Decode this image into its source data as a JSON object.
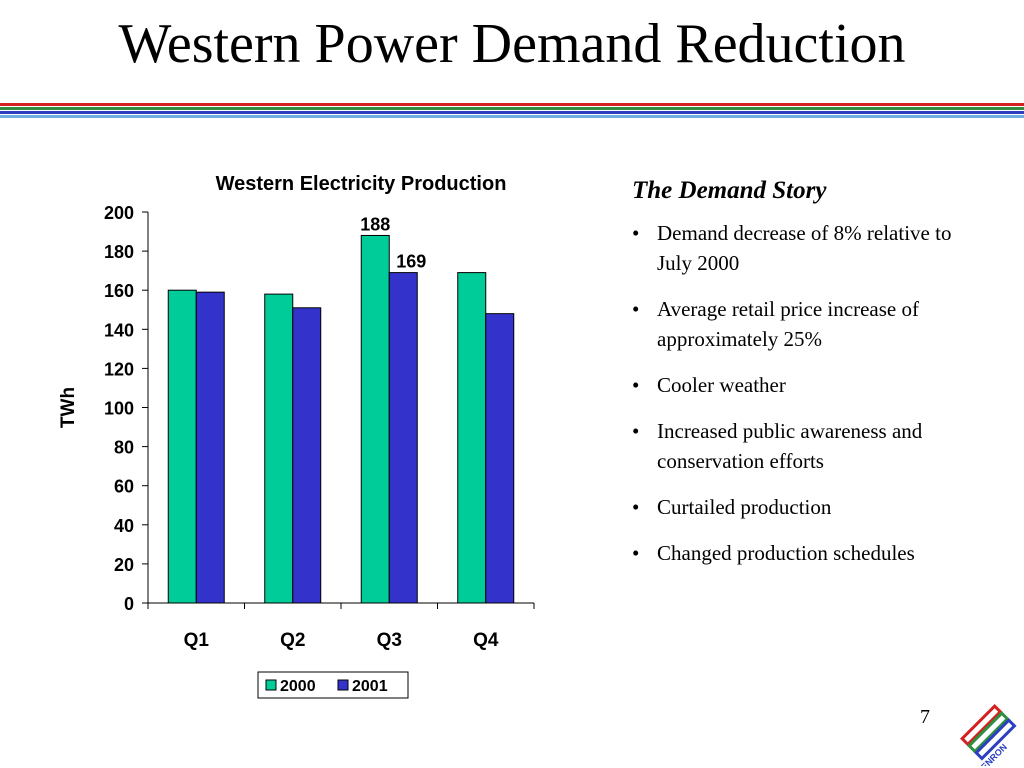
{
  "slide": {
    "title": "Western Power Demand Reduction",
    "page_number": "7",
    "rule_colors": [
      "#d42020",
      "#2f8f3f",
      "#2b3fbf",
      "#6fb0e0"
    ]
  },
  "chart_data": {
    "type": "bar",
    "title": "Western Electricity Production",
    "xlabel": "",
    "ylabel": "TWh",
    "ylim": [
      0,
      200
    ],
    "yticks": [
      0,
      20,
      40,
      60,
      80,
      100,
      120,
      140,
      160,
      180,
      200
    ],
    "categories": [
      "Q1",
      "Q2",
      "Q3",
      "Q4"
    ],
    "series": [
      {
        "name": "2000",
        "color": "#00cc99",
        "values": [
          160,
          158,
          188,
          169
        ]
      },
      {
        "name": "2001",
        "color": "#3333cc",
        "values": [
          159,
          151,
          169,
          148
        ]
      }
    ],
    "data_labels": [
      {
        "series": 0,
        "index": 2,
        "text": "188"
      },
      {
        "series": 1,
        "index": 2,
        "text": "169"
      }
    ],
    "legend_position": "bottom",
    "grid": false
  },
  "story": {
    "heading": "The Demand Story",
    "bullet_glyph": "•",
    "bullets": [
      "Demand decrease of 8% relative to July 2000",
      "Average retail price increase of approximately 25%",
      "Cooler weather",
      "Increased public awareness and conservation efforts",
      "Curtailed production",
      "Changed production schedules"
    ]
  },
  "logo": {
    "text": "ENRON",
    "colors": [
      "#d42020",
      "#2f8f3f",
      "#2b3fbf",
      "#f0c020"
    ]
  }
}
